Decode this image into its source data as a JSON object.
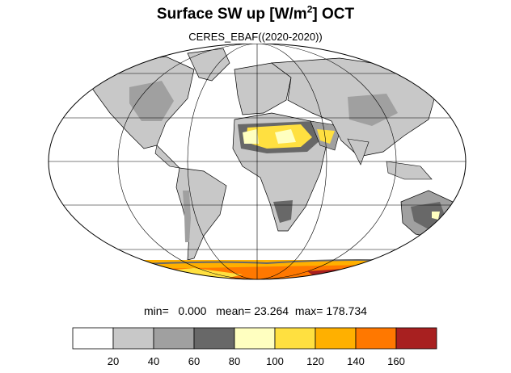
{
  "title": {
    "main": "Surface SW up [W/m",
    "sup": "2",
    "suffix": "]  OCT"
  },
  "subtitle": "CERES_EBAF((2020-2020))",
  "stats": {
    "min_label": "min=",
    "min": "0.000",
    "mean_label": "mean=",
    "mean": "23.264",
    "max_label": "max=",
    "max": "178.734"
  },
  "colorbar": {
    "levels": [
      "20",
      "40",
      "60",
      "80",
      "100",
      "120",
      "140",
      "160"
    ],
    "colors": [
      "#ffffff",
      "#c8c8c8",
      "#a0a0a0",
      "#686868",
      "#ffffc0",
      "#ffe040",
      "#ffb000",
      "#ff7800",
      "#a82020"
    ]
  },
  "map": {
    "projection": "Mollweide",
    "colors": {
      "land_outline": "#000000",
      "grid": "#000000"
    }
  }
}
